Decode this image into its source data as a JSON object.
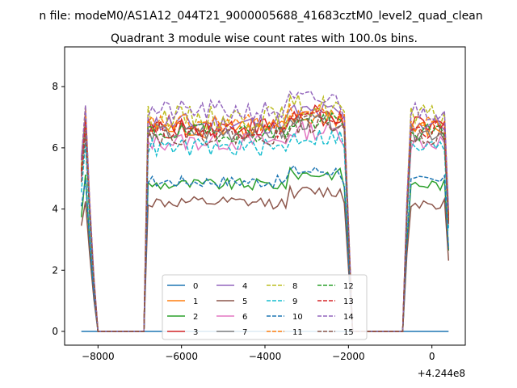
{
  "chart_data": {
    "type": "line",
    "suptitle": "n file: modeM0/AS1A12_044T21_9000005688_41683cztM0_level2_quad_clean",
    "title": "Quadrant 3 module wise count rates with 100.0s bins.",
    "xlabel": "",
    "ylabel": "",
    "x_offset_label": "+4.244e8",
    "xlim": [
      -8800,
      800
    ],
    "ylim": [
      -0.45,
      9.3
    ],
    "xticks": [
      -8000,
      -6000,
      -4000,
      -2000,
      0
    ],
    "xtick_labels": [
      "−8000",
      "−6000",
      "−4000",
      "−2000",
      "0"
    ],
    "yticks": [
      0,
      2,
      4,
      6,
      8
    ],
    "ytick_labels": [
      "0",
      "2",
      "4",
      "6",
      "8"
    ],
    "grid": false,
    "legend": {
      "placement": "lower-center",
      "ncol": 4
    },
    "segments": {
      "pass1": [
        -8400,
        -8000
      ],
      "gap1": [
        -8000,
        -6900
      ],
      "pass2": [
        -6900,
        -1900
      ],
      "gap2": [
        -1900,
        -700
      ],
      "pass3": [
        -700,
        400
      ],
      "step": 100
    },
    "series": [
      {
        "name": "0",
        "color": "#1f77b4",
        "dash": "solid",
        "level": 0.0,
        "amp": 0.0,
        "flat": true
      },
      {
        "name": "1",
        "color": "#ff7f0e",
        "dash": "solid",
        "level": 6.6,
        "amp": 0.3
      },
      {
        "name": "2",
        "color": "#2ca02c",
        "dash": "solid",
        "level": 4.8,
        "amp": 0.2
      },
      {
        "name": "3",
        "color": "#d62728",
        "dash": "solid",
        "level": 6.7,
        "amp": 0.35
      },
      {
        "name": "4",
        "color": "#9467bd",
        "dash": "solid",
        "level": 6.8,
        "amp": 0.35
      },
      {
        "name": "5",
        "color": "#8c564b",
        "dash": "solid",
        "level": 4.2,
        "amp": 0.2
      },
      {
        "name": "6",
        "color": "#e377c2",
        "dash": "solid",
        "level": 6.2,
        "amp": 0.3
      },
      {
        "name": "7",
        "color": "#7f7f7f",
        "dash": "solid",
        "level": 6.5,
        "amp": 0.3
      },
      {
        "name": "8",
        "color": "#bcbd22",
        "dash": "dashed",
        "level": 7.0,
        "amp": 0.4
      },
      {
        "name": "9",
        "color": "#17becf",
        "dash": "dashed",
        "level": 6.0,
        "amp": 0.3
      },
      {
        "name": "10",
        "color": "#1f77b4",
        "dash": "dashed",
        "level": 4.9,
        "amp": 0.2
      },
      {
        "name": "11",
        "color": "#ff7f0e",
        "dash": "dashed",
        "level": 6.8,
        "amp": 0.3
      },
      {
        "name": "12",
        "color": "#2ca02c",
        "dash": "dashed",
        "level": 6.5,
        "amp": 0.3
      },
      {
        "name": "13",
        "color": "#d62728",
        "dash": "dashed",
        "level": 6.6,
        "amp": 0.3
      },
      {
        "name": "14",
        "color": "#9467bd",
        "dash": "dashed",
        "level": 7.2,
        "amp": 0.35
      },
      {
        "name": "15",
        "color": "#8c564b",
        "dash": "dashed",
        "level": 6.4,
        "amp": 0.3
      }
    ]
  }
}
